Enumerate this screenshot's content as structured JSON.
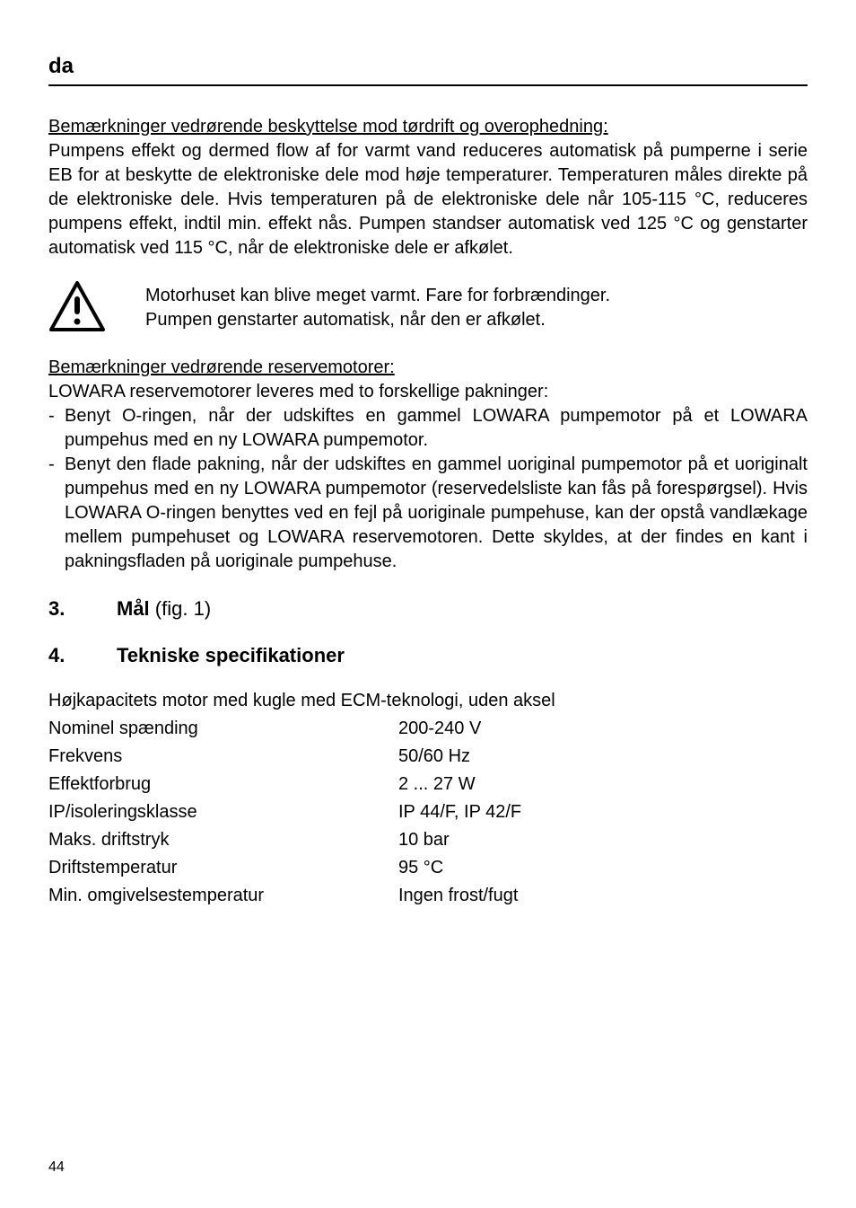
{
  "lang_code": "da",
  "section_a": {
    "heading": "Bemærkninger vedrørende beskyttelse mod tørdrift og overophedning:",
    "body": "Pumpens effekt og dermed flow af for varmt vand reduceres automatisk på pumperne i serie EB for at beskytte de elektroniske dele mod høje temperaturer. Temperaturen måles direkte på de elektroniske dele. Hvis temperaturen på de elektroniske dele når 105-115 °C, reduceres pumpens effekt, indtil min. effekt nås. Pumpen standser automatisk ved 125 °C og genstarter automatisk ved 115 °C, når de elektroniske dele er afkølet."
  },
  "warning": {
    "line1": "Motorhuset kan blive meget varmt. Fare for forbrændinger.",
    "line2": "Pumpen genstarter automatisk, når den er afkølet."
  },
  "section_b": {
    "heading": "Bemærkninger vedrørende reservemotorer:",
    "intro": "LOWARA reservemotorer leveres med to forskellige pakninger:",
    "items": [
      "Benyt O-ringen, når der udskiftes en gammel LOWARA pumpemotor på et LOWARA pumpehus med en ny LOWARA pumpemotor.",
      "Benyt den flade pakning, når der udskiftes en gammel uoriginal pumpemotor på et uoriginalt pumpehus med en ny LOWARA pumpemotor (reservedelsliste kan fås på forespørgsel). Hvis LOWARA O-ringen benyttes ved en fejl på uoriginale pumpehuse, kan der opstå vandlækage mellem pumpehuset og LOWARA reservemotoren. Dette skyldes, at der findes en kant i pakningsfladen på uoriginale pumpehuse."
    ]
  },
  "sec3": {
    "num": "3.",
    "title": "Mål",
    "suffix": " (fig. 1)"
  },
  "sec4": {
    "num": "4.",
    "title": "Tekniske specifikationer"
  },
  "specs": {
    "head": "Højkapacitets motor med kugle med ECM-teknologi, uden aksel",
    "rows": [
      {
        "label": "Nominel spænding",
        "value": "200-240 V"
      },
      {
        "label": "Frekvens",
        "value": "50/60 Hz"
      },
      {
        "label": "Effektforbrug",
        "value": "2 ... 27 W"
      },
      {
        "label": "IP/isoleringsklasse",
        "value": "IP 44/F, IP 42/F"
      },
      {
        "label": "Maks. driftstryk",
        "value": "10 bar"
      },
      {
        "label": "Driftstemperatur",
        "value": "95 °C"
      },
      {
        "label": "Min. omgivelsestemperatur",
        "value": "Ingen frost/fugt"
      }
    ]
  },
  "page_number": "44",
  "icon": {
    "stroke": "#000000",
    "fill": "#ffffff",
    "size": 64
  }
}
